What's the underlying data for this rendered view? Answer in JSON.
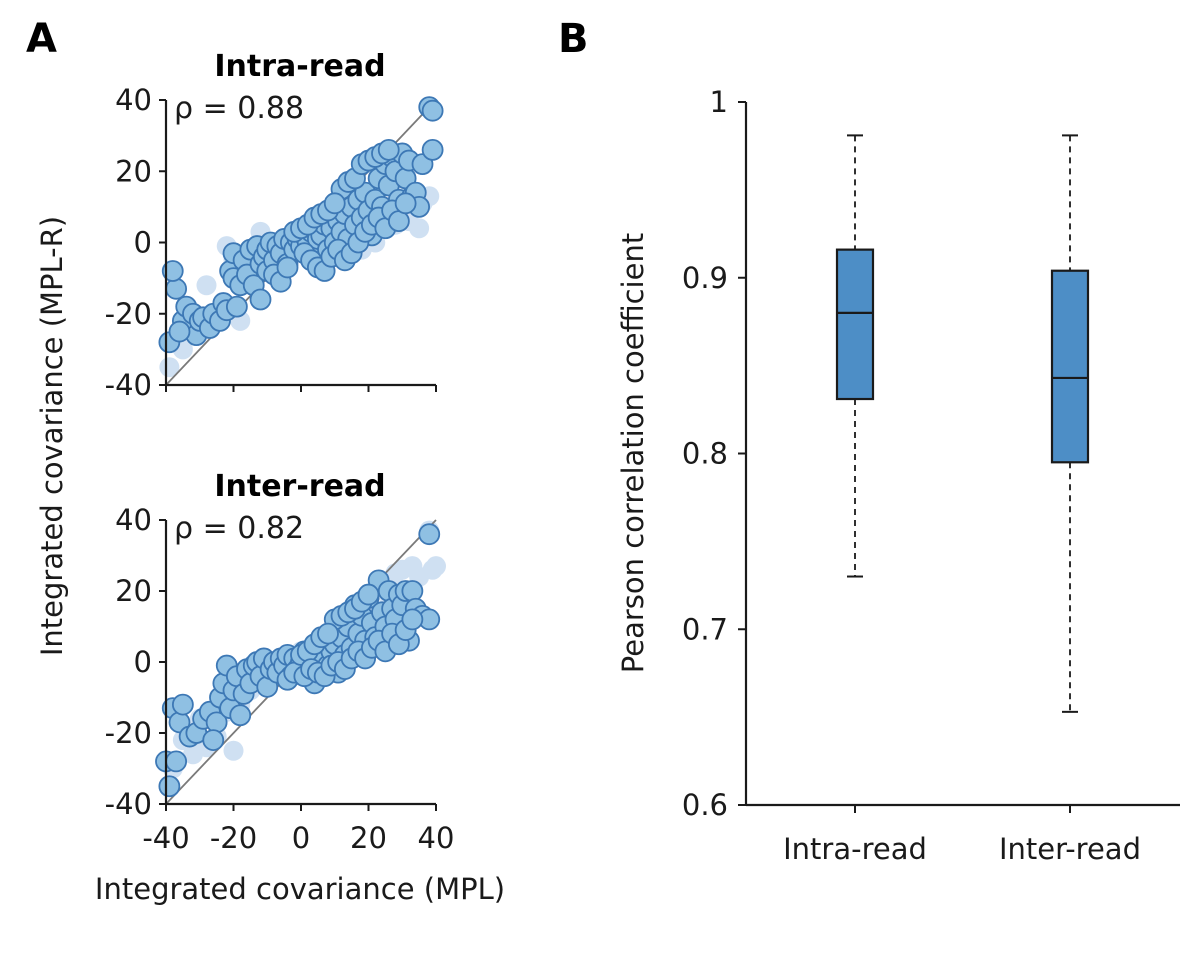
{
  "panel_labels": [
    "A",
    "B"
  ],
  "chart_data": [
    {
      "type": "scatter",
      "title": "Intra-read",
      "annotation": "ρ = 0.88",
      "xlim": [
        -40,
        40
      ],
      "ylim": [
        -40,
        40
      ],
      "xticks": [
        "-40",
        "-20",
        "0",
        "20",
        "40"
      ],
      "yticks": [
        "-40",
        "-20",
        "0",
        "20",
        "40"
      ],
      "diagonal": true,
      "colors": {
        "main_fill": "#8fc0e3",
        "main_edge": "#3d78b5",
        "faint": "#cfe0f2"
      },
      "faint_points": [
        [
          -39,
          -35
        ],
        [
          -35,
          -30
        ],
        [
          -30,
          -25
        ],
        [
          -25,
          -20
        ],
        [
          -22,
          -1
        ],
        [
          -20,
          -5
        ],
        [
          -15,
          -10
        ],
        [
          -10,
          -3
        ],
        [
          -5,
          -2
        ],
        [
          0,
          2
        ],
        [
          5,
          -3
        ],
        [
          8,
          -4
        ],
        [
          10,
          5
        ],
        [
          15,
          10
        ],
        [
          18,
          -2
        ],
        [
          20,
          2
        ],
        [
          25,
          8
        ],
        [
          28,
          5
        ],
        [
          30,
          14
        ],
        [
          32,
          6
        ],
        [
          36,
          11
        ],
        [
          38,
          13
        ],
        [
          35,
          4
        ],
        [
          12,
          -1
        ],
        [
          -12,
          3
        ],
        [
          -8,
          -8
        ],
        [
          2,
          -4
        ],
        [
          22,
          0
        ],
        [
          -28,
          -12
        ],
        [
          -18,
          -22
        ]
      ],
      "points": [
        [
          -39,
          -28
        ],
        [
          -37,
          -13
        ],
        [
          -35,
          -22
        ],
        [
          -34,
          -18
        ],
        [
          -32,
          -20
        ],
        [
          -31,
          -26
        ],
        [
          -30,
          -22
        ],
        [
          -29,
          -21
        ],
        [
          -27,
          -24
        ],
        [
          -26,
          -20
        ],
        [
          -24,
          -22
        ],
        [
          -23,
          -17
        ],
        [
          -22,
          -19
        ],
        [
          -21,
          -8
        ],
        [
          -20,
          -3
        ],
        [
          -20,
          -10
        ],
        [
          -19,
          -18
        ],
        [
          -18,
          -12
        ],
        [
          -17,
          -5
        ],
        [
          -16,
          -9
        ],
        [
          -15,
          -2
        ],
        [
          -14,
          -12
        ],
        [
          -13,
          -1
        ],
        [
          -12,
          -6
        ],
        [
          -11,
          -4
        ],
        [
          -10,
          -8
        ],
        [
          -10,
          -2
        ],
        [
          -9,
          0
        ],
        [
          -8,
          -5
        ],
        [
          -7,
          -1
        ],
        [
          -6,
          -3
        ],
        [
          -5,
          1
        ],
        [
          -4,
          -6
        ],
        [
          -3,
          0
        ],
        [
          -2,
          -2
        ],
        [
          -1,
          1
        ],
        [
          0,
          -1
        ],
        [
          1,
          2
        ],
        [
          2,
          0
        ],
        [
          3,
          3
        ],
        [
          4,
          -4
        ],
        [
          5,
          1
        ],
        [
          6,
          2
        ],
        [
          7,
          5
        ],
        [
          8,
          -2
        ],
        [
          9,
          4
        ],
        [
          10,
          0
        ],
        [
          11,
          6
        ],
        [
          12,
          3
        ],
        [
          13,
          8
        ],
        [
          14,
          1
        ],
        [
          15,
          10
        ],
        [
          16,
          5
        ],
        [
          17,
          12
        ],
        [
          18,
          7
        ],
        [
          19,
          14
        ],
        [
          20,
          9
        ],
        [
          21,
          2
        ],
        [
          22,
          12
        ],
        [
          23,
          18
        ],
        [
          24,
          10
        ],
        [
          25,
          22
        ],
        [
          26,
          16
        ],
        [
          27,
          24
        ],
        [
          28,
          20
        ],
        [
          29,
          12
        ],
        [
          30,
          25
        ],
        [
          31,
          18
        ],
        [
          32,
          23
        ],
        [
          33,
          13
        ],
        [
          34,
          14
        ],
        [
          35,
          10
        ],
        [
          36,
          22
        ],
        [
          38,
          38
        ],
        [
          39,
          37
        ],
        [
          39,
          26
        ],
        [
          -38,
          -8
        ],
        [
          -36,
          -25
        ],
        [
          12,
          15
        ],
        [
          14,
          17
        ],
        [
          16,
          18
        ],
        [
          18,
          22
        ],
        [
          20,
          23
        ],
        [
          22,
          24
        ],
        [
          24,
          25
        ],
        [
          26,
          26
        ],
        [
          -2,
          3
        ],
        [
          0,
          4
        ],
        [
          2,
          5
        ],
        [
          4,
          7
        ],
        [
          6,
          8
        ],
        [
          8,
          9
        ],
        [
          10,
          11
        ],
        [
          -12,
          -16
        ],
        [
          -8,
          -9
        ],
        [
          -6,
          -11
        ],
        [
          -4,
          -7
        ],
        [
          1,
          -3
        ],
        [
          3,
          -5
        ],
        [
          5,
          -7
        ],
        [
          7,
          -8
        ],
        [
          9,
          -4
        ],
        [
          11,
          -2
        ],
        [
          13,
          -5
        ],
        [
          15,
          -3
        ],
        [
          17,
          0
        ],
        [
          19,
          3
        ],
        [
          21,
          5
        ],
        [
          23,
          7
        ],
        [
          25,
          4
        ],
        [
          27,
          9
        ],
        [
          29,
          6
        ],
        [
          31,
          11
        ]
      ]
    },
    {
      "type": "scatter",
      "title": "Inter-read",
      "annotation": "ρ = 0.82",
      "xlim": [
        -40,
        40
      ],
      "ylim": [
        -40,
        40
      ],
      "xticks": [
        "-40",
        "-20",
        "0",
        "20",
        "40"
      ],
      "yticks": [
        "-40",
        "-20",
        "0",
        "20",
        "40"
      ],
      "xlabel": "Integrated covariance (MPL)",
      "diagonal": true,
      "faint_points": [
        [
          -38,
          -30
        ],
        [
          -35,
          -22
        ],
        [
          -32,
          -26
        ],
        [
          -30,
          -16
        ],
        [
          -28,
          -24
        ],
        [
          -25,
          -21
        ],
        [
          -22,
          -14
        ],
        [
          -18,
          -12
        ],
        [
          -15,
          -8
        ],
        [
          -10,
          -4
        ],
        [
          -5,
          0
        ],
        [
          0,
          3
        ],
        [
          5,
          6
        ],
        [
          10,
          9
        ],
        [
          15,
          12
        ],
        [
          20,
          14
        ],
        [
          25,
          22
        ],
        [
          28,
          25
        ],
        [
          30,
          26
        ],
        [
          33,
          27
        ],
        [
          35,
          24
        ],
        [
          38,
          37
        ],
        [
          39,
          26
        ],
        [
          40,
          27
        ],
        [
          22,
          20
        ],
        [
          26,
          16
        ],
        [
          18,
          8
        ],
        [
          12,
          10
        ],
        [
          8,
          4
        ],
        [
          -20,
          -25
        ]
      ],
      "points": [
        [
          -40,
          -28
        ],
        [
          -39,
          -35
        ],
        [
          -38,
          -13
        ],
        [
          -36,
          -17
        ],
        [
          -35,
          -12
        ],
        [
          -33,
          -21
        ],
        [
          -31,
          -20
        ],
        [
          -29,
          -16
        ],
        [
          -27,
          -14
        ],
        [
          -25,
          -17
        ],
        [
          -24,
          -10
        ],
        [
          -23,
          -6
        ],
        [
          -22,
          -1
        ],
        [
          -21,
          -13
        ],
        [
          -20,
          -8
        ],
        [
          -19,
          -4
        ],
        [
          -18,
          -15
        ],
        [
          -17,
          -9
        ],
        [
          -16,
          -2
        ],
        [
          -15,
          -6
        ],
        [
          -14,
          -1
        ],
        [
          -13,
          0
        ],
        [
          -12,
          -4
        ],
        [
          -11,
          1
        ],
        [
          -10,
          -7
        ],
        [
          -9,
          -2
        ],
        [
          -8,
          0
        ],
        [
          -7,
          -3
        ],
        [
          -6,
          1
        ],
        [
          -5,
          -1
        ],
        [
          -4,
          2
        ],
        [
          -3,
          -4
        ],
        [
          -2,
          1
        ],
        [
          -1,
          -2
        ],
        [
          0,
          0
        ],
        [
          1,
          3
        ],
        [
          2,
          -1
        ],
        [
          3,
          2
        ],
        [
          4,
          -6
        ],
        [
          5,
          4
        ],
        [
          6,
          1
        ],
        [
          7,
          6
        ],
        [
          8,
          -1
        ],
        [
          9,
          3
        ],
        [
          10,
          5
        ],
        [
          11,
          -3
        ],
        [
          12,
          7
        ],
        [
          13,
          2
        ],
        [
          14,
          10
        ],
        [
          15,
          4
        ],
        [
          16,
          16
        ],
        [
          17,
          8
        ],
        [
          18,
          13
        ],
        [
          19,
          6
        ],
        [
          20,
          18
        ],
        [
          21,
          11
        ],
        [
          22,
          7
        ],
        [
          23,
          23
        ],
        [
          24,
          14
        ],
        [
          25,
          10
        ],
        [
          26,
          20
        ],
        [
          27,
          15
        ],
        [
          28,
          12
        ],
        [
          29,
          19
        ],
        [
          30,
          16
        ],
        [
          31,
          20
        ],
        [
          32,
          6
        ],
        [
          33,
          20
        ],
        [
          34,
          15
        ],
        [
          36,
          13
        ],
        [
          38,
          36
        ],
        [
          38,
          12
        ],
        [
          -26,
          -22
        ],
        [
          -37,
          -28
        ],
        [
          10,
          12
        ],
        [
          12,
          13
        ],
        [
          14,
          14
        ],
        [
          16,
          15
        ],
        [
          18,
          17
        ],
        [
          20,
          19
        ],
        [
          -4,
          -5
        ],
        [
          -2,
          -3
        ],
        [
          0,
          2
        ],
        [
          2,
          3
        ],
        [
          4,
          5
        ],
        [
          6,
          7
        ],
        [
          8,
          8
        ],
        [
          1,
          -4
        ],
        [
          3,
          -2
        ],
        [
          5,
          -3
        ],
        [
          7,
          -4
        ],
        [
          9,
          -1
        ],
        [
          11,
          0
        ],
        [
          13,
          -2
        ],
        [
          15,
          1
        ],
        [
          17,
          3
        ],
        [
          19,
          1
        ],
        [
          21,
          4
        ],
        [
          23,
          6
        ],
        [
          25,
          3
        ],
        [
          27,
          8
        ],
        [
          29,
          5
        ],
        [
          31,
          9
        ],
        [
          33,
          12
        ]
      ]
    },
    {
      "type": "box",
      "categories": [
        "Intra-read",
        "Inter-read"
      ],
      "ylabel": "Pearson correlation coefficient",
      "ylim": [
        0.6,
        1.0
      ],
      "yticks": [
        "0.6",
        "0.7",
        "0.8",
        "0.9",
        "1"
      ],
      "boxes": [
        {
          "whisker_low": 0.73,
          "q1": 0.831,
          "median": 0.88,
          "q3": 0.916,
          "whisker_high": 0.981
        },
        {
          "whisker_low": 0.653,
          "q1": 0.795,
          "median": 0.843,
          "q3": 0.904,
          "whisker_high": 0.981
        }
      ],
      "colors": {
        "box_fill": "#4d8ec6"
      }
    }
  ],
  "shared_ylabel": "Integrated covariance (MPL-R)"
}
